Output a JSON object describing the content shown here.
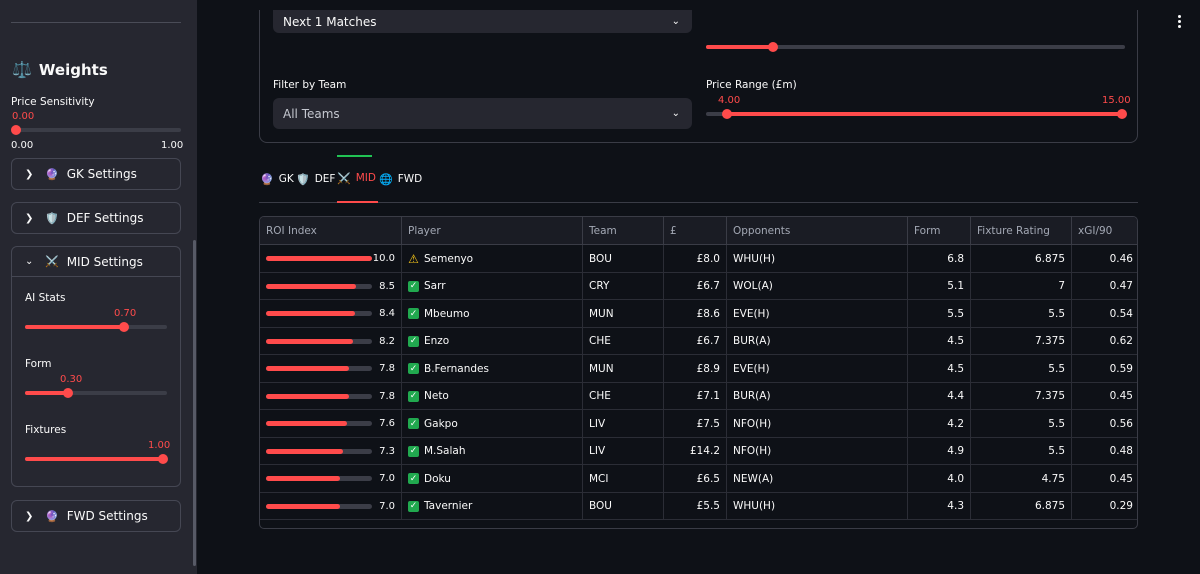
{
  "sidebar": {
    "weights_icon": "balance-scale-icon",
    "weights_title": "Weights",
    "price_sensitivity": {
      "label": "Price Sensitivity",
      "value": "0.00",
      "level": 0.0,
      "min": "0.00",
      "max": "1.00"
    },
    "gk": {
      "icon": "purple-gem-icon",
      "label": "GK Settings"
    },
    "def": {
      "icon": "shield-icon",
      "label": "DEF Settings"
    },
    "mid": {
      "icon": "crossed-swords-icon",
      "label": "MID Settings",
      "ai_stats": {
        "label": "AI Stats",
        "value": "0.70",
        "level": 0.7
      },
      "form": {
        "label": "Form",
        "value": "0.30",
        "level": 0.3
      },
      "fixtures": {
        "label": "Fixtures",
        "value": "1.00",
        "level": 1.0
      }
    },
    "fwd": {
      "icon": "globe-icon",
      "label": "FWD Settings"
    }
  },
  "filters": {
    "matches_select": "Next 1 Matches",
    "team_label": "Filter by Team",
    "team_select": "All Teams",
    "price_label": "Price Range (£m)",
    "price_min": "4.00",
    "price_max": "15.00",
    "price_range_level": [
      0.0,
      1.0
    ],
    "top_slider_level": 0.16
  },
  "tabs": [
    {
      "label": "GK",
      "icon": "gem-icon"
    },
    {
      "label": "DEF",
      "icon": "shield-icon"
    },
    {
      "label": "MID",
      "icon": "crossed-swords-icon",
      "active": true
    },
    {
      "label": "FWD",
      "icon": "globe-icon"
    }
  ],
  "table": {
    "headers": [
      "ROI Index",
      "Player",
      "Team",
      "£",
      "Opponents",
      "Form",
      "Fixture Rating",
      "xGI/90"
    ],
    "rows": [
      {
        "roi": "10.0",
        "status": "warning",
        "player": "Semenyo",
        "team": "BOU",
        "price": "£8.0",
        "opp": "WHU(H)",
        "form": "6.8",
        "fix": "6.875",
        "xgi": "0.46"
      },
      {
        "roi": "8.5",
        "status": "check",
        "player": "Sarr",
        "team": "CRY",
        "price": "£6.7",
        "opp": "WOL(A)",
        "form": "5.1",
        "fix": "7",
        "xgi": "0.47"
      },
      {
        "roi": "8.4",
        "status": "check",
        "player": "Mbeumo",
        "team": "MUN",
        "price": "£8.6",
        "opp": "EVE(H)",
        "form": "5.5",
        "fix": "5.5",
        "xgi": "0.54"
      },
      {
        "roi": "8.2",
        "status": "check",
        "player": "Enzo",
        "team": "CHE",
        "price": "£6.7",
        "opp": "BUR(A)",
        "form": "4.5",
        "fix": "7.375",
        "xgi": "0.62"
      },
      {
        "roi": "7.8",
        "status": "check",
        "player": "B.Fernandes",
        "team": "MUN",
        "price": "£8.9",
        "opp": "EVE(H)",
        "form": "4.5",
        "fix": "5.5",
        "xgi": "0.59"
      },
      {
        "roi": "7.8",
        "status": "check",
        "player": "Neto",
        "team": "CHE",
        "price": "£7.1",
        "opp": "BUR(A)",
        "form": "4.4",
        "fix": "7.375",
        "xgi": "0.45"
      },
      {
        "roi": "7.6",
        "status": "check",
        "player": "Gakpo",
        "team": "LIV",
        "price": "£7.5",
        "opp": "NFO(H)",
        "form": "4.2",
        "fix": "5.5",
        "xgi": "0.56"
      },
      {
        "roi": "7.3",
        "status": "check",
        "player": "M.Salah",
        "team": "LIV",
        "price": "£14.2",
        "opp": "NFO(H)",
        "form": "4.9",
        "fix": "5.5",
        "xgi": "0.48"
      },
      {
        "roi": "7.0",
        "status": "check",
        "player": "Doku",
        "team": "MCI",
        "price": "£6.5",
        "opp": "NEW(A)",
        "form": "4.0",
        "fix": "4.75",
        "xgi": "0.45"
      },
      {
        "roi": "7.0",
        "status": "check",
        "player": "Tavernier",
        "team": "BOU",
        "price": "£5.5",
        "opp": "WHU(H)",
        "form": "4.3",
        "fix": "6.875",
        "xgi": "0.29"
      }
    ]
  }
}
